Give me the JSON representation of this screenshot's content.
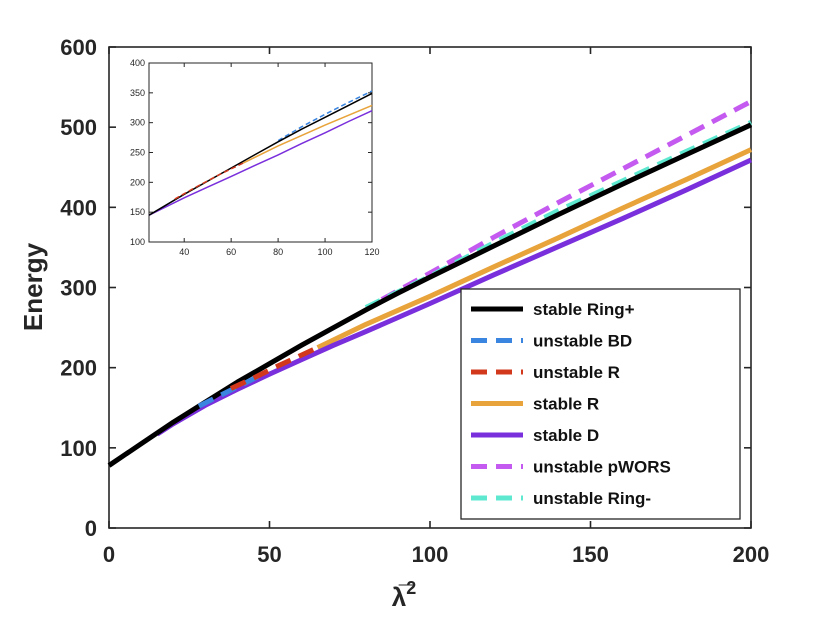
{
  "chart_data": [
    {
      "type": "line",
      "ylabel": "Energy",
      "xlabel": "λ̅",
      "xlabel_superscript": "2",
      "xlim": [
        0,
        200
      ],
      "ylim": [
        0,
        600
      ],
      "xticks": [
        "0",
        "50",
        "100",
        "150",
        "200"
      ],
      "yticks": [
        "0",
        "100",
        "200",
        "300",
        "400",
        "500",
        "600"
      ],
      "legend_position": "bottom-right",
      "series": [
        {
          "name": "stable Ring+",
          "color": "#000000",
          "style": "solid",
          "x": [
            0,
            10,
            20,
            30,
            40,
            50,
            60,
            70,
            80,
            90,
            100,
            120,
            140,
            160,
            180,
            200
          ],
          "y": [
            78,
            105,
            132,
            157,
            182,
            205,
            228,
            250,
            272,
            293,
            313,
            352,
            391,
            429,
            466,
            503
          ]
        },
        {
          "name": "unstable BD",
          "color": "#3a85e0",
          "style": "dashed",
          "x": [
            28,
            35,
            42,
            48
          ],
          "y": [
            152,
            166,
            180,
            192
          ]
        },
        {
          "name": "unstable R",
          "color": "#d2381c",
          "style": "dashed",
          "x": [
            38,
            45,
            52,
            58,
            65
          ],
          "y": [
            174,
            187,
            201,
            212,
            225
          ]
        },
        {
          "name": "stable R",
          "color": "#e8a33a",
          "style": "solid",
          "x": [
            65,
            80,
            100,
            120,
            140,
            160,
            180,
            200
          ],
          "y": [
            225,
            254,
            289,
            326,
            362,
            399,
            435,
            472
          ]
        },
        {
          "name": "stable D",
          "color": "#7a2fdc",
          "style": "solid",
          "x": [
            15,
            20,
            30,
            40,
            50,
            60,
            70,
            80,
            100,
            120,
            140,
            160,
            180,
            200
          ],
          "y": [
            117,
            130,
            153,
            173,
            192,
            210,
            228,
            245,
            280,
            316,
            351,
            386,
            422,
            459
          ]
        },
        {
          "name": "unstable pWORS",
          "color": "#c45af0",
          "style": "dashed",
          "x": [
            85,
            100,
            120,
            140,
            160,
            180,
            200
          ],
          "y": [
            285,
            318,
            363,
            406,
            448,
            490,
            532
          ]
        },
        {
          "name": "unstable Ring-",
          "color": "#5ee8d0",
          "style": "dashed",
          "x": [
            80,
            100,
            120,
            140,
            160,
            180,
            200
          ],
          "y": [
            275,
            314,
            356,
            396,
            433,
            470,
            506
          ]
        }
      ]
    },
    {
      "type": "line",
      "xlim": [
        25,
        120
      ],
      "ylim": [
        100,
        400
      ],
      "xticks": [
        "40",
        "60",
        "80",
        "100",
        "120"
      ],
      "yticks": [
        "100",
        "150",
        "200",
        "250",
        "300",
        "350",
        "400"
      ],
      "series": [
        {
          "color": "#000000",
          "style": "solid",
          "x": [
            25,
            40,
            50,
            60,
            70,
            80,
            90,
            100,
            110,
            120
          ],
          "y": [
            145,
            180,
            202,
            224,
            246,
            268,
            289,
            309,
            329,
            349
          ]
        },
        {
          "color": "#d2381c",
          "style": "dashed",
          "x": [
            36,
            45,
            55,
            65
          ],
          "y": [
            172,
            192,
            213,
            232
          ]
        },
        {
          "color": "#e8a33a",
          "style": "solid",
          "x": [
            65,
            80,
            100,
            120
          ],
          "y": [
            232,
            261,
            296,
            329
          ]
        },
        {
          "color": "#7a2fdc",
          "style": "solid",
          "x": [
            25,
            40,
            50,
            60,
            70,
            80,
            90,
            100,
            110,
            120
          ],
          "y": [
            145,
            174,
            192,
            210,
            228,
            246,
            265,
            283,
            302,
            320
          ]
        },
        {
          "color": "#3a85e0",
          "style": "dashed",
          "x": [
            80,
            90,
            100,
            110,
            120
          ],
          "y": [
            270,
            293,
            314,
            334,
            353
          ]
        }
      ]
    }
  ]
}
